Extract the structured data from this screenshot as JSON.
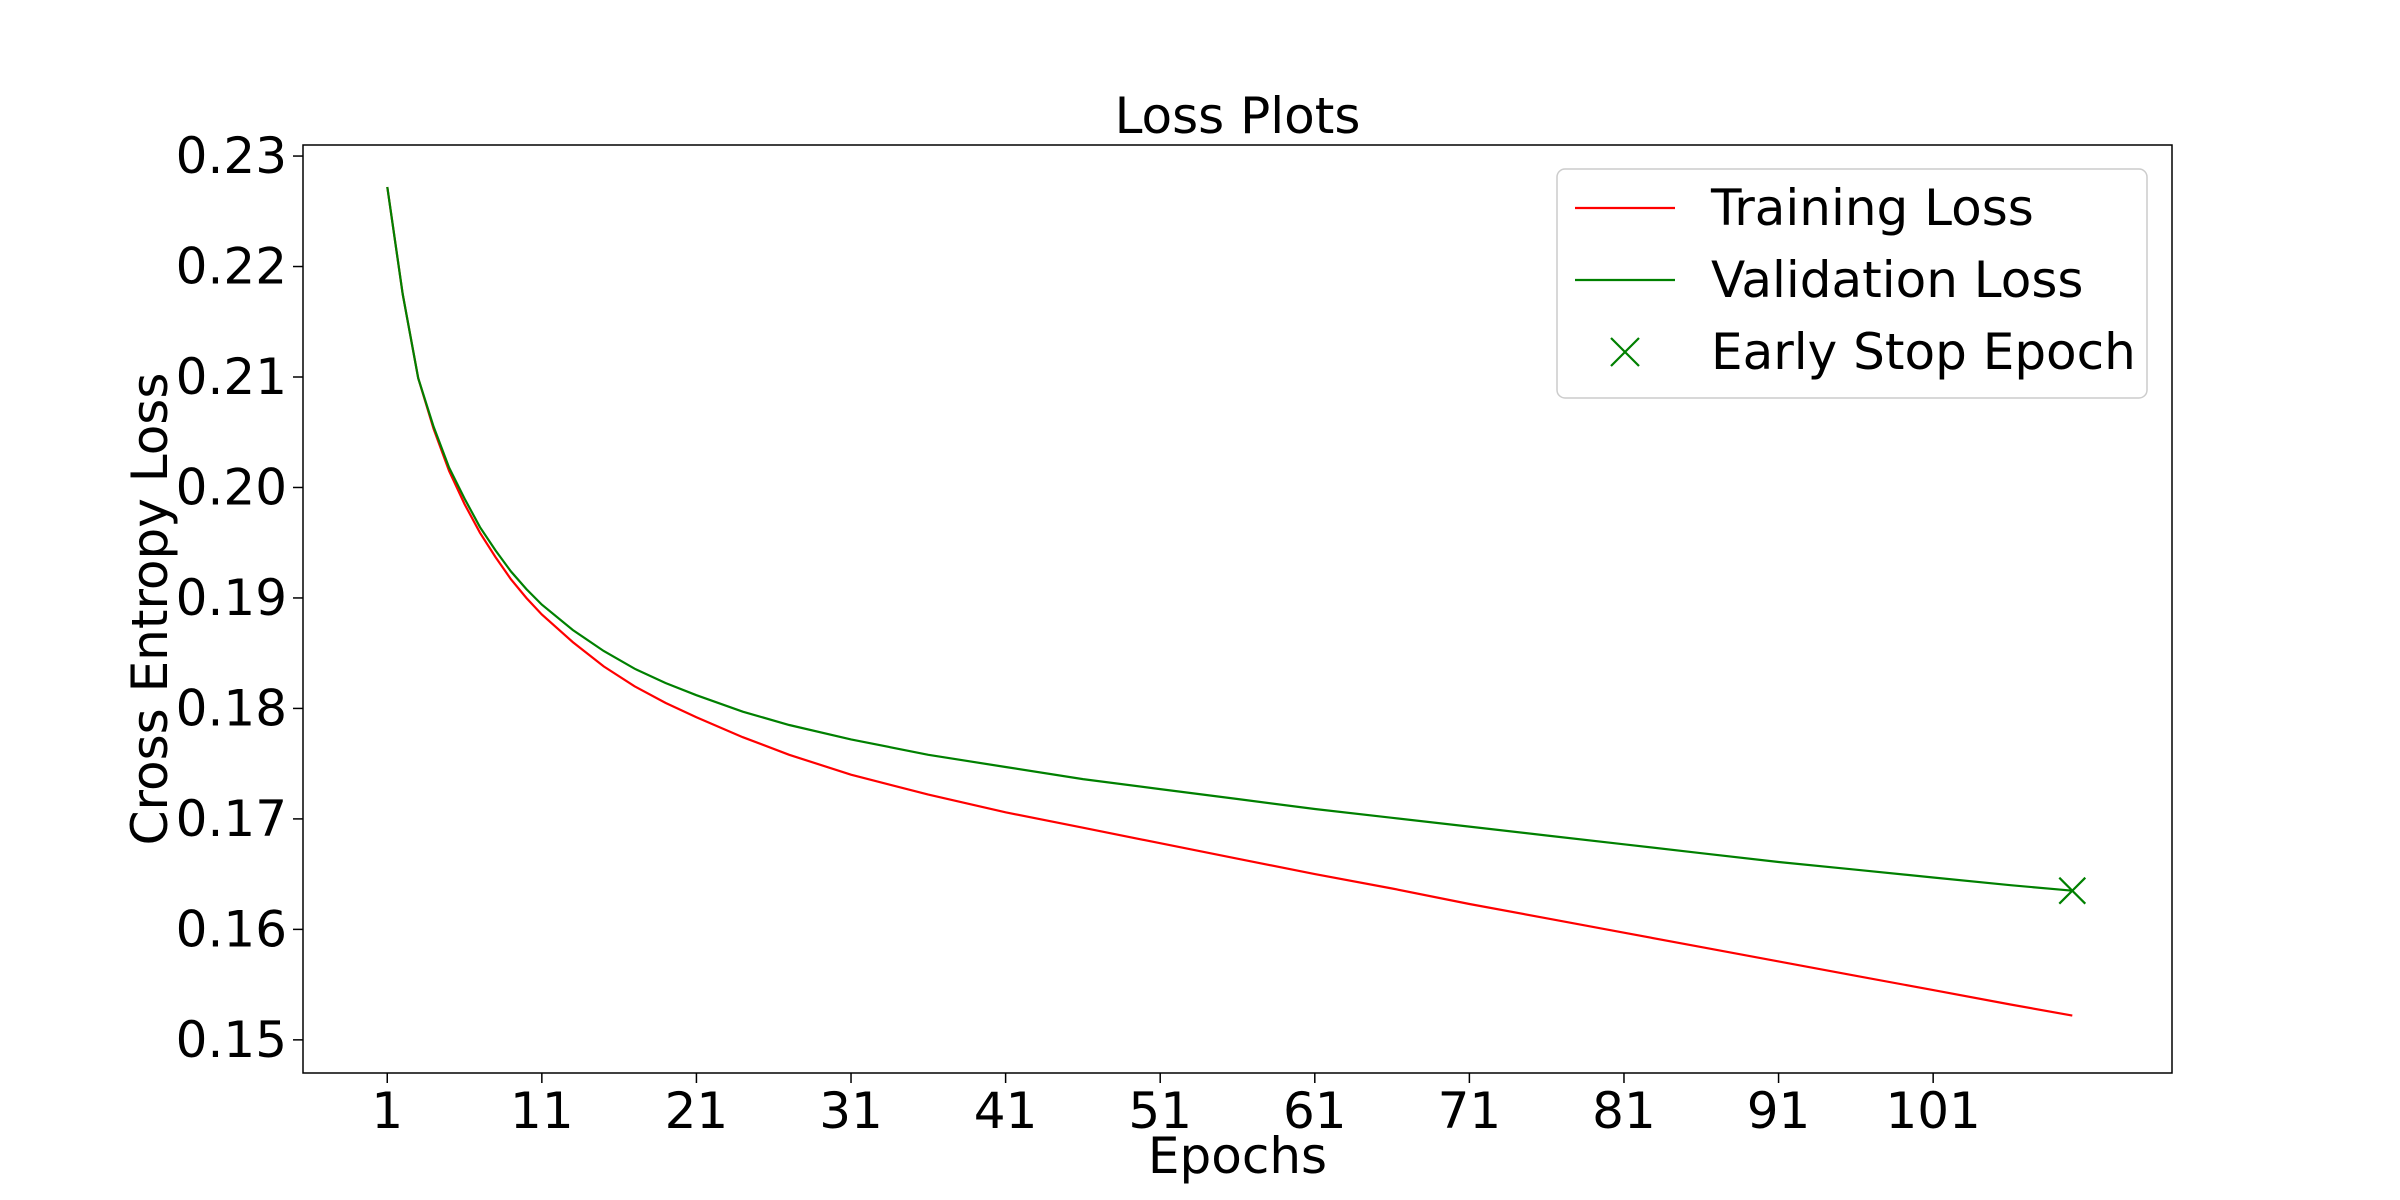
{
  "chart_data": {
    "type": "line",
    "title": "Loss Plots",
    "xlabel": "Epochs",
    "ylabel": "Cross Entropy Loss",
    "xlim": [
      -4.45,
      116.45
    ],
    "ylim": [
      0.147,
      0.231
    ],
    "xticks": [
      1,
      11,
      21,
      31,
      41,
      51,
      61,
      71,
      81,
      91,
      101
    ],
    "yticks": [
      0.15,
      0.16,
      0.17,
      0.18,
      0.19,
      0.2,
      0.21,
      0.22,
      0.23
    ],
    "ytick_labels": [
      "0.15",
      "0.16",
      "0.17",
      "0.18",
      "0.19",
      "0.20",
      "0.21",
      "0.22",
      "0.23"
    ],
    "grid": false,
    "legend_position": "top-right",
    "series": [
      {
        "name": "Training Loss",
        "color": "#ff0000",
        "x": [
          1,
          2,
          3,
          4,
          5,
          6,
          7,
          8,
          9,
          10,
          11,
          13,
          15,
          17,
          19,
          21,
          24,
          27,
          31,
          36,
          41,
          46,
          51,
          56,
          61,
          66,
          71,
          76,
          81,
          86,
          91,
          96,
          101,
          106,
          110
        ],
        "y": [
          0.2272,
          0.2175,
          0.2099,
          0.2053,
          0.2015,
          0.1985,
          0.1959,
          0.1937,
          0.1917,
          0.19,
          0.1885,
          0.186,
          0.1838,
          0.182,
          0.1805,
          0.1792,
          0.1774,
          0.1758,
          0.174,
          0.1722,
          0.1706,
          0.1692,
          0.1678,
          0.1664,
          0.165,
          0.1637,
          0.1623,
          0.161,
          0.1597,
          0.1584,
          0.1571,
          0.1558,
          0.1545,
          0.1532,
          0.1522
        ]
      },
      {
        "name": "Validation Loss",
        "color": "#008000",
        "x": [
          1,
          2,
          3,
          4,
          5,
          6,
          7,
          8,
          9,
          10,
          11,
          13,
          15,
          17,
          19,
          21,
          24,
          27,
          31,
          36,
          41,
          46,
          51,
          56,
          61,
          66,
          71,
          76,
          81,
          86,
          91,
          96,
          101,
          106,
          110
        ],
        "y": [
          0.2272,
          0.2175,
          0.2099,
          0.2055,
          0.2018,
          0.199,
          0.1964,
          0.1943,
          0.1924,
          0.1908,
          0.1894,
          0.1871,
          0.1852,
          0.1836,
          0.1823,
          0.1812,
          0.1797,
          0.1785,
          0.1772,
          0.1758,
          0.1747,
          0.1736,
          0.1727,
          0.1718,
          0.1709,
          0.1701,
          0.1693,
          0.1685,
          0.1677,
          0.1669,
          0.1661,
          0.1654,
          0.1647,
          0.164,
          0.1635
        ]
      }
    ],
    "markers": [
      {
        "name": "Early Stop Epoch",
        "x": 110,
        "y": 0.1635,
        "color": "#008000",
        "shape": "x"
      }
    ]
  }
}
